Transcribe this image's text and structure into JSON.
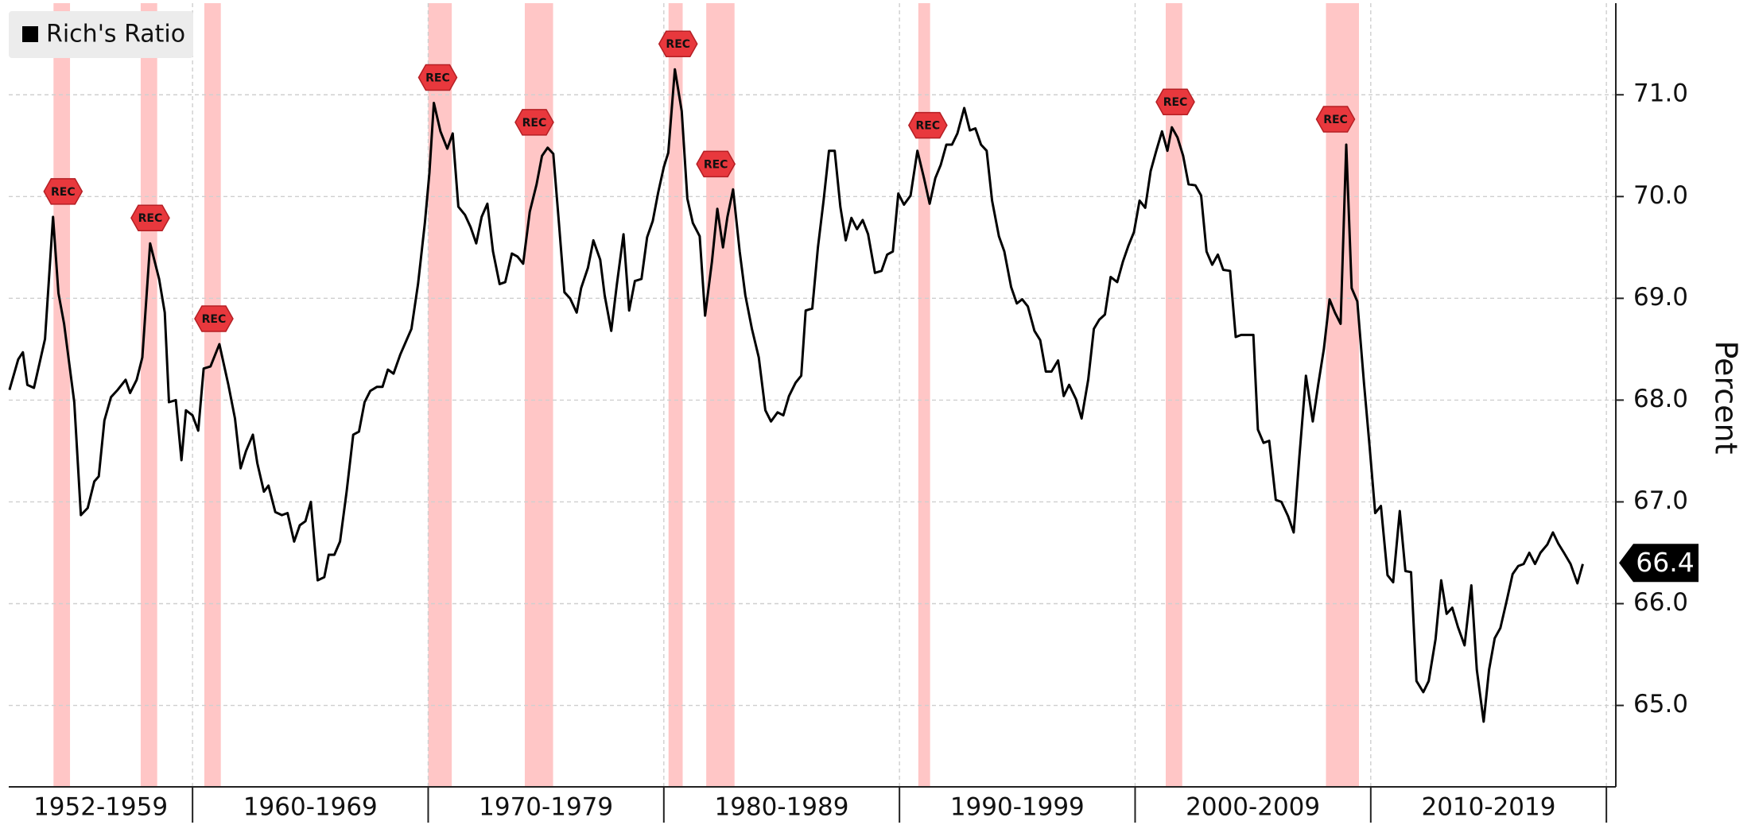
{
  "chart_data": {
    "type": "line",
    "legend": "top-left",
    "y_axis_side": "right",
    "ylabel": "Percent",
    "series": [
      {
        "name": "Rich's Ratio",
        "color": "#000000",
        "x": [
          1952.23,
          1952.6,
          1952.8,
          1952.99,
          1953.27,
          1953.74,
          1954.08,
          1954.31,
          1954.55,
          1954.98,
          1955.26,
          1955.55,
          1955.83,
          1956.02,
          1956.26,
          1956.54,
          1956.82,
          1957.16,
          1957.35,
          1957.63,
          1957.87,
          1958.2,
          1958.58,
          1958.82,
          1959.0,
          1959.29,
          1959.53,
          1959.72,
          1960.0,
          1960.24,
          1960.47,
          1960.76,
          1961.14,
          1961.52,
          1961.8,
          1962.04,
          1962.27,
          1962.56,
          1962.75,
          1963.03,
          1963.22,
          1963.51,
          1963.79,
          1964.03,
          1964.31,
          1964.55,
          1964.79,
          1965.02,
          1965.31,
          1965.59,
          1965.78,
          1966.02,
          1966.26,
          1966.54,
          1966.82,
          1967.06,
          1967.3,
          1967.54,
          1967.82,
          1968.06,
          1968.29,
          1968.53,
          1968.82,
          1969.29,
          1969.57,
          1969.86,
          1970.05,
          1970.24,
          1970.52,
          1970.81,
          1971.04,
          1971.28,
          1971.56,
          1971.8,
          1972.04,
          1972.27,
          1972.51,
          1972.75,
          1973.03,
          1973.27,
          1973.55,
          1973.79,
          1974.03,
          1974.31,
          1974.6,
          1974.83,
          1975.07,
          1975.31,
          1975.55,
          1975.78,
          1976.02,
          1976.3,
          1976.49,
          1976.78,
          1977.01,
          1977.3,
          1977.49,
          1977.77,
          1978.01,
          1978.29,
          1978.53,
          1978.77,
          1979.05,
          1979.29,
          1979.53,
          1979.76,
          1980.0,
          1980.19,
          1980.47,
          1980.76,
          1981.0,
          1981.23,
          1981.52,
          1981.75,
          1982.04,
          1982.27,
          1982.51,
          1982.7,
          1982.94,
          1983.22,
          1983.46,
          1983.74,
          1984.03,
          1984.31,
          1984.55,
          1984.83,
          1985.07,
          1985.31,
          1985.59,
          1985.83,
          1986.02,
          1986.3,
          1986.54,
          1986.78,
          1987.01,
          1987.25,
          1987.49,
          1987.72,
          1987.96,
          1988.2,
          1988.44,
          1988.67,
          1988.96,
          1989.24,
          1989.48,
          1989.72,
          1989.95,
          1990.19,
          1990.47,
          1990.76,
          1991.04,
          1991.28,
          1991.52,
          1991.75,
          1991.99,
          1992.23,
          1992.46,
          1992.75,
          1992.99,
          1993.22,
          1993.46,
          1993.7,
          1993.93,
          1994.22,
          1994.45,
          1994.74,
          1994.98,
          1995.21,
          1995.45,
          1995.73,
          1995.97,
          1996.21,
          1996.45,
          1996.73,
          1996.97,
          1997.2,
          1997.49,
          1997.73,
          1998.01,
          1998.25,
          1998.48,
          1998.72,
          1998.96,
          1999.24,
          1999.48,
          1999.72,
          1999.95,
          2000.19,
          2000.43,
          2000.66,
          2000.9,
          2001.14,
          2001.37,
          2001.56,
          2001.8,
          2002.04,
          2002.27,
          2002.56,
          2002.8,
          2003.03,
          2003.27,
          2003.51,
          2003.74,
          2004.03,
          2004.27,
          2004.5,
          2004.79,
          2005.02,
          2005.21,
          2005.45,
          2005.69,
          2005.97,
          2006.21,
          2006.49,
          2006.73,
          2006.97,
          2007.25,
          2007.54,
          2007.77,
          2008.01,
          2008.25,
          2008.48,
          2008.72,
          2008.96,
          2009.19,
          2009.43,
          2009.72,
          2009.95,
          2010.19,
          2010.43,
          2010.71,
          2010.95,
          2011.23,
          2011.47,
          2011.71,
          2011.94,
          2012.23,
          2012.46,
          2012.75,
          2012.99,
          2013.22,
          2013.46,
          2013.7,
          2013.98,
          2014.27,
          2014.5,
          2014.79,
          2015.02,
          2015.26,
          2015.5,
          2015.78,
          2016.02,
          2016.26,
          2016.49,
          2016.73,
          2016.97,
          2017.2,
          2017.49,
          2017.73,
          2017.96,
          2018.2,
          2018.48,
          2018.77,
          2019.0
        ],
        "values": [
          68.1,
          68.4,
          68.47,
          68.15,
          68.12,
          68.6,
          69.8,
          69.05,
          68.75,
          67.98,
          66.87,
          66.94,
          67.2,
          67.25,
          67.8,
          68.03,
          68.1,
          68.2,
          68.07,
          68.2,
          68.42,
          69.54,
          69.19,
          68.86,
          67.98,
          68.0,
          67.41,
          67.9,
          67.85,
          67.7,
          68.31,
          68.33,
          68.55,
          68.15,
          67.82,
          67.33,
          67.5,
          67.66,
          67.38,
          67.1,
          67.16,
          66.9,
          66.87,
          66.89,
          66.61,
          66.77,
          66.81,
          67.0,
          66.23,
          66.26,
          66.48,
          66.48,
          66.61,
          67.1,
          67.66,
          67.69,
          67.98,
          68.09,
          68.13,
          68.13,
          68.3,
          68.26,
          68.45,
          68.7,
          69.14,
          69.74,
          70.23,
          70.92,
          70.64,
          70.47,
          70.62,
          69.9,
          69.82,
          69.7,
          69.54,
          69.8,
          69.93,
          69.46,
          69.14,
          69.16,
          69.44,
          69.41,
          69.34,
          69.85,
          70.12,
          70.4,
          70.48,
          70.42,
          69.74,
          69.06,
          69.0,
          68.86,
          69.1,
          69.3,
          69.57,
          69.38,
          69.03,
          68.68,
          69.14,
          69.63,
          68.88,
          69.17,
          69.19,
          69.6,
          69.76,
          70.04,
          70.29,
          70.43,
          71.25,
          70.84,
          69.98,
          69.74,
          69.61,
          68.83,
          69.36,
          69.88,
          69.5,
          69.8,
          70.07,
          69.46,
          69.03,
          68.7,
          68.42,
          67.9,
          67.79,
          67.88,
          67.85,
          68.04,
          68.17,
          68.24,
          68.88,
          68.9,
          69.5,
          69.96,
          70.45,
          70.45,
          69.9,
          69.57,
          69.79,
          69.68,
          69.77,
          69.63,
          69.25,
          69.27,
          69.43,
          69.46,
          70.03,
          69.92,
          70.01,
          70.45,
          70.18,
          69.93,
          70.18,
          70.31,
          70.51,
          70.51,
          70.62,
          70.87,
          70.65,
          70.67,
          70.51,
          70.45,
          69.96,
          69.61,
          69.46,
          69.11,
          68.95,
          68.99,
          68.92,
          68.68,
          68.59,
          68.28,
          68.28,
          68.39,
          68.04,
          68.15,
          68.01,
          67.82,
          68.2,
          68.7,
          68.79,
          68.84,
          69.21,
          69.16,
          69.36,
          69.52,
          69.65,
          69.96,
          69.89,
          70.25,
          70.45,
          70.64,
          70.45,
          70.68,
          70.58,
          70.4,
          70.12,
          70.11,
          70.01,
          69.46,
          69.33,
          69.43,
          69.28,
          69.27,
          68.62,
          68.64,
          68.64,
          68.64,
          67.71,
          67.58,
          67.6,
          67.02,
          67.0,
          66.86,
          66.7,
          67.44,
          68.24,
          67.79,
          68.15,
          68.5,
          68.99,
          68.86,
          68.75,
          70.51,
          69.1,
          68.97,
          68.15,
          67.55,
          66.89,
          66.96,
          66.28,
          66.21,
          66.91,
          66.32,
          66.31,
          65.24,
          65.13,
          65.24,
          65.65,
          66.23,
          65.9,
          65.96,
          65.77,
          65.59,
          66.18,
          65.35,
          64.84,
          65.35,
          65.66,
          65.76,
          66.04,
          66.29,
          66.37,
          66.39,
          66.5,
          66.39,
          66.5,
          66.58,
          66.7,
          66.59,
          66.5,
          66.39,
          66.2,
          66.39
        ]
      }
    ],
    "last_value": 66.4,
    "recession_label": "REC",
    "recession_color": "#ffb3b3",
    "recessions": [
      [
        1954.1,
        1954.8
      ],
      [
        1957.8,
        1958.5
      ],
      [
        1960.5,
        1961.2
      ],
      [
        1970.0,
        1971.0
      ],
      [
        1974.1,
        1975.3
      ],
      [
        1980.2,
        1980.8
      ],
      [
        1981.8,
        1983.0
      ],
      [
        1990.8,
        1991.3
      ],
      [
        2001.3,
        2002.0
      ],
      [
        2008.1,
        2009.5
      ]
    ],
    "xlim": [
      1952.2,
      2020.4
    ],
    "xticks": [
      1960,
      1970,
      1980,
      1990,
      2000,
      2010,
      2020
    ],
    "periods": [
      {
        "label": "1952-1959",
        "from": 1952.2,
        "to": 1960
      },
      {
        "label": "1960-1969",
        "from": 1960,
        "to": 1970
      },
      {
        "label": "1970-1979",
        "from": 1970,
        "to": 1980
      },
      {
        "label": "1980-1989",
        "from": 1980,
        "to": 1990
      },
      {
        "label": "1990-1999",
        "from": 1990,
        "to": 2000
      },
      {
        "label": "2000-2009",
        "from": 2000,
        "to": 2010
      },
      {
        "label": "2010-2019",
        "from": 2010,
        "to": 2020
      }
    ],
    "ylim": [
      64.2,
      71.9
    ],
    "yticks": [
      {
        "value": 65,
        "label": "65.0"
      },
      {
        "value": 66,
        "label": "66.0"
      },
      {
        "value": 67,
        "label": "67.0"
      },
      {
        "value": 68,
        "label": "68.0"
      },
      {
        "value": 69,
        "label": "69.0"
      },
      {
        "value": 70,
        "label": "70.0"
      },
      {
        "value": 71,
        "label": "71.0"
      }
    ],
    "grid": true
  }
}
